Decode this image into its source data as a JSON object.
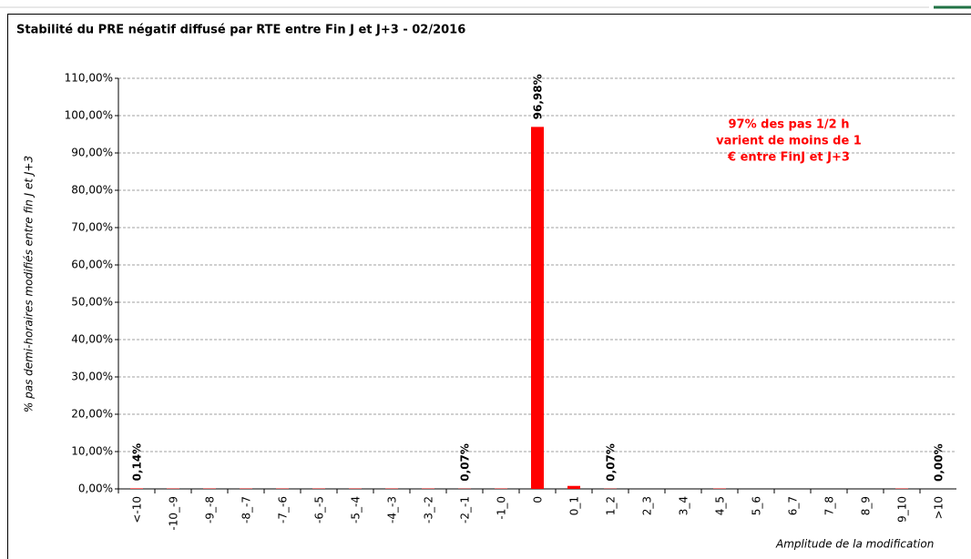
{
  "chart_data": {
    "type": "bar",
    "title": "Stabilité du PRE négatif diffusé par RTE entre Fin J et J+3 - 02/2016",
    "y_label": "% pas demi-horaires modifiés entre fin J et J+3",
    "x_label": "Amplitude de la modification",
    "annotation": [
      "97% des pas 1/2 h",
      "varient de moins de 1",
      "€ entre FinJ et J+3"
    ],
    "categories": [
      "<-10",
      "-10_-9",
      "-9_-8",
      "-8_-7",
      "-7_-6",
      "-6_-5",
      "-5_-4",
      "-4_-3",
      "-3_-2",
      "-2_-1",
      "-1_0",
      "0",
      "0_1",
      "1_2",
      "2_3",
      "3_4",
      "4_5",
      "5_6",
      "6_7",
      "7_8",
      "8_9",
      "9_10",
      ">10"
    ],
    "values": [
      0.14,
      0.1,
      0.1,
      0.1,
      0.1,
      0.1,
      0.1,
      0.1,
      0.1,
      0.07,
      0.1,
      96.98,
      0.8,
      0.07,
      0,
      0,
      0.1,
      0,
      0,
      0,
      0,
      0.1,
      0.0
    ],
    "value_labels": [
      "0,14%",
      null,
      null,
      null,
      null,
      null,
      null,
      null,
      null,
      "0,07%",
      null,
      "96,98%",
      null,
      "0,07%",
      null,
      null,
      null,
      null,
      null,
      null,
      null,
      null,
      "0,00%"
    ],
    "color": "#ff0000",
    "ylim": [
      0,
      110
    ],
    "yticks": [
      {
        "value": 0,
        "label": "0,00%"
      },
      {
        "value": 10,
        "label": "10,00%"
      },
      {
        "value": 20,
        "label": "20,00%"
      },
      {
        "value": 30,
        "label": "30,00%"
      },
      {
        "value": 40,
        "label": "40,00%"
      },
      {
        "value": 50,
        "label": "50,00%"
      },
      {
        "value": 60,
        "label": "60,00%"
      },
      {
        "value": 70,
        "label": "70,00%"
      },
      {
        "value": 80,
        "label": "80,00%"
      },
      {
        "value": 90,
        "label": "90,00%"
      },
      {
        "value": 100,
        "label": "100,00%"
      },
      {
        "value": 110,
        "label": "110,00%"
      }
    ],
    "grid": true
  }
}
